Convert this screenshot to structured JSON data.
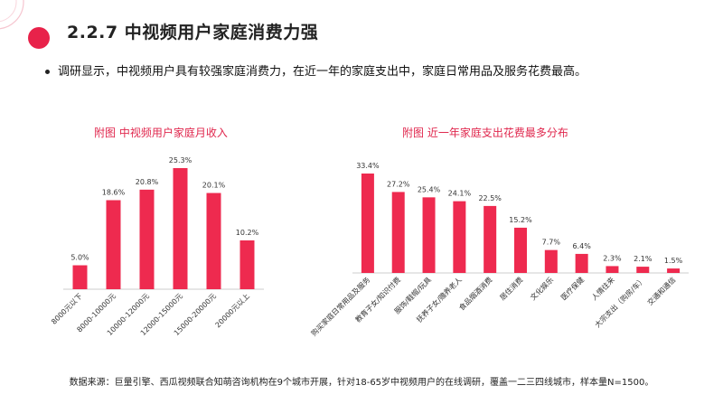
{
  "slide": {
    "title": "2.2.7  中视频用户家庭消费力强",
    "bullet": "调研显示，中视频用户具有较强家庭消费力，在近一年的家庭支出中，家庭日常用品及服务花费最高。",
    "source": "数据来源：巨量引擎、西瓜视频联合知萌咨询机构在9个城市开展，针对18-65岁中视频用户的在线调研，覆盖一二三四线城市，样本量N=1500。"
  },
  "colors": {
    "accent": "#e8224a",
    "bar": "#ee2a4f",
    "deco_light": "#fbd3db",
    "axis": "#cccccc"
  },
  "chart_data": [
    {
      "type": "bar",
      "title": "附图 中视频用户家庭月收入",
      "categories": [
        "8000元以下",
        "8000-10000元",
        "10000-12000元",
        "12000-15000元",
        "15000-20000元",
        "20000元以上"
      ],
      "values": [
        5.0,
        18.6,
        20.8,
        25.3,
        20.1,
        10.2
      ],
      "labels": [
        "5.0%",
        "18.6%",
        "20.8%",
        "25.3%",
        "20.1%",
        "10.2%"
      ],
      "xlabel": "",
      "ylabel": "",
      "ylim": [
        0,
        25.3
      ]
    },
    {
      "type": "bar",
      "title": "附图 近一年家庭支出花费最多分布",
      "categories": [
        "购买家庭日常用品及服务",
        "教育子女/知识付费",
        "服饰/鞋帽/玩具",
        "抚养子女/赡养老人",
        "食品烟酒消费",
        "居住消费",
        "文化娱乐",
        "医疗保健",
        "人情往来",
        "大宗支出（购房/车）",
        "交通和通信"
      ],
      "values": [
        33.4,
        27.2,
        25.4,
        24.1,
        22.5,
        15.2,
        7.7,
        6.4,
        2.3,
        2.1,
        1.5
      ],
      "labels": [
        "33.4%",
        "27.2%",
        "25.4%",
        "24.1%",
        "22.5%",
        "15.2%",
        "7.7%",
        "6.4%",
        "2.3%",
        "2.1%",
        "1.5%"
      ],
      "xlabel": "",
      "ylabel": "",
      "ylim": [
        0,
        33.4
      ]
    }
  ]
}
